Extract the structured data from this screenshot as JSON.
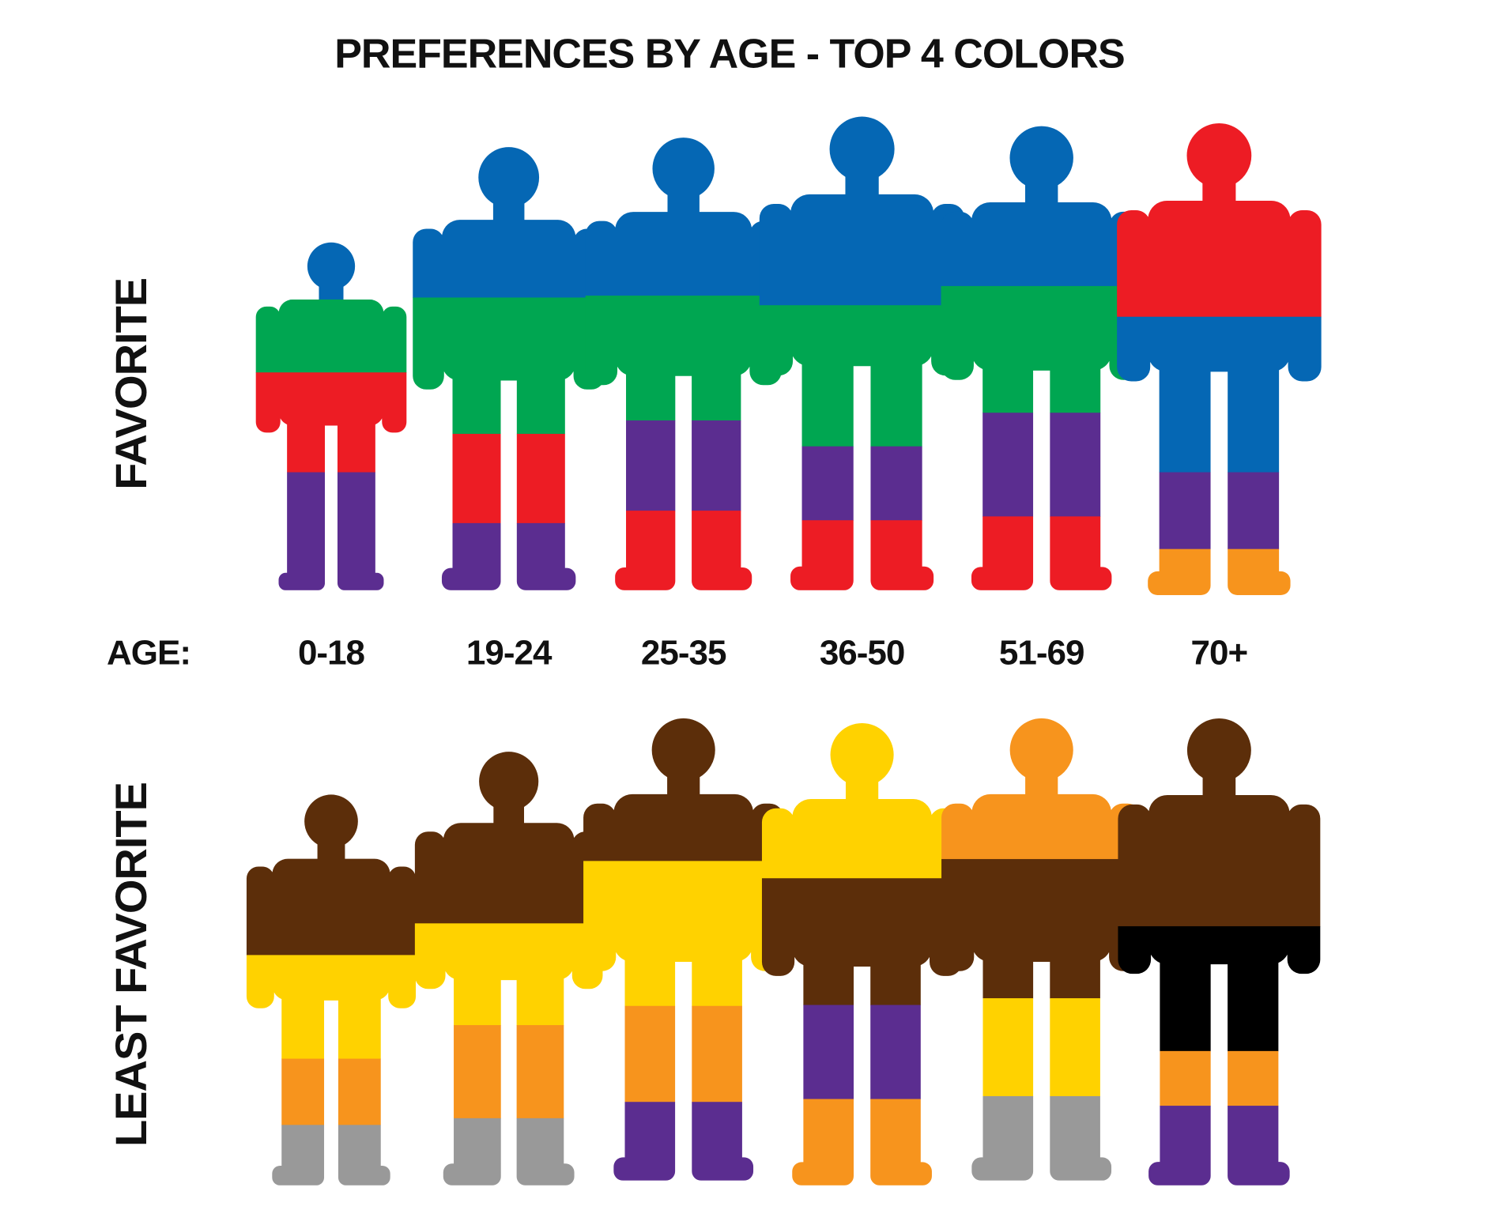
{
  "title": "PREFERENCES BY AGE - TOP 4 COLORS",
  "rows": [
    {
      "label": "FAVORITE",
      "figures": [
        {
          "bands": [
            "#0567b4",
            "#00a651",
            "#ed1c24",
            "#5b2d90"
          ]
        },
        {
          "bands": [
            "#0567b4",
            "#00a651",
            "#ed1c24",
            "#5b2d90"
          ]
        },
        {
          "bands": [
            "#0567b4",
            "#00a651",
            "#5b2d90",
            "#ed1c24"
          ]
        },
        {
          "bands": [
            "#0567b4",
            "#00a651",
            "#5b2d90",
            "#ed1c24"
          ]
        },
        {
          "bands": [
            "#0567b4",
            "#00a651",
            "#5b2d90",
            "#ed1c24"
          ]
        },
        {
          "bands": [
            "#ed1c24",
            "#0567b4",
            "#5b2d90",
            "#f7941d"
          ]
        }
      ]
    },
    {
      "label": "LEAST FAVORITE",
      "figures": [
        {
          "bands": [
            "#5c2e0a",
            "#ffd200",
            "#f7941d",
            "#999999"
          ]
        },
        {
          "bands": [
            "#5c2e0a",
            "#ffd200",
            "#f7941d",
            "#999999"
          ]
        },
        {
          "bands": [
            "#5c2e0a",
            "#ffd200",
            "#f7941d",
            "#5b2d90"
          ]
        },
        {
          "bands": [
            "#ffd200",
            "#5c2e0a",
            "#5b2d90",
            "#f7941d"
          ]
        },
        {
          "bands": [
            "#f7941d",
            "#5c2e0a",
            "#ffd200",
            "#999999"
          ]
        },
        {
          "bands": [
            "#5c2e0a",
            "#000000",
            "#f7941d",
            "#5b2d90"
          ]
        }
      ]
    }
  ],
  "age_label": "AGE:",
  "ages": [
    "0-18",
    "19-24",
    "25-35",
    "36-50",
    "51-69",
    "70+"
  ]
}
